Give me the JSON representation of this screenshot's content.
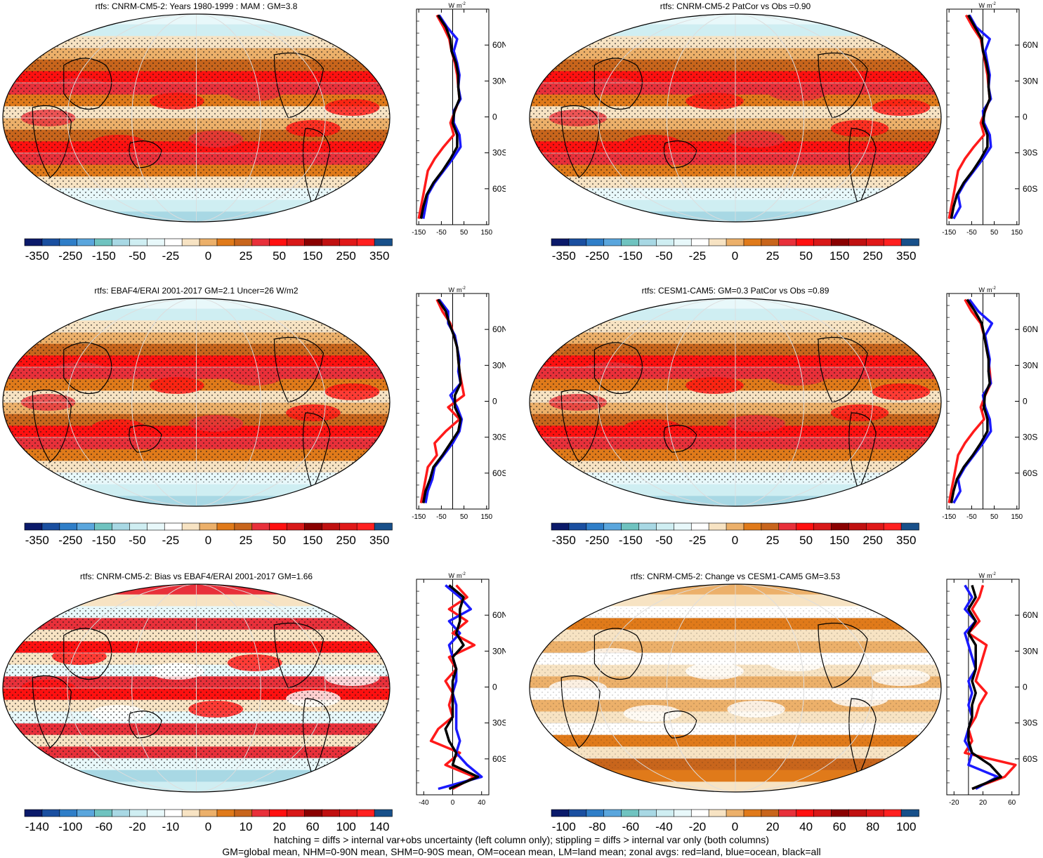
{
  "panels": [
    {
      "title": "rtfs: CNRM-CM5-2: Years 1980-1999 : MAM : GM=3.8",
      "scale": "A",
      "pattern": "tropics"
    },
    {
      "title": "rtfs: CNRM-CM5-2 PatCor vs Obs =0.90",
      "scale": "A",
      "pattern": "tropics"
    },
    {
      "title": "rtfs: EBAF4/ERAI 2001-2017 GM=2.1 Uncer=26 W/m2",
      "scale": "A",
      "pattern": "tropics"
    },
    {
      "title": "rtfs: CESM1-CAM5: GM=0.3 PatCor vs Obs =0.89",
      "scale": "A",
      "pattern": "tropics"
    },
    {
      "title": "rtfs: CNRM-CM5-2: Bias vs EBAF4/ERAI 2001-2017 GM=1.66",
      "scale": "B",
      "pattern": "bias"
    },
    {
      "title": "rtfs: CNRM-CM5-2: Change vs CESM1-CAM5 GM=3.53",
      "scale": "C",
      "pattern": "change"
    }
  ],
  "colorbars": {
    "A": [
      "-350",
      "-250",
      "-150",
      "-50",
      "-25",
      "0",
      "25",
      "50",
      "150",
      "250",
      "350"
    ],
    "B": [
      "-140",
      "-100",
      "-60",
      "-20",
      "-10",
      "0",
      "10",
      "20",
      "60",
      "100",
      "140"
    ],
    "C": [
      "-100",
      "-80",
      "-60",
      "-40",
      "-20",
      "0",
      "20",
      "40",
      "60",
      "80",
      "100"
    ]
  },
  "palette": [
    "#0b1a6a",
    "#1a4fa0",
    "#2f7ec8",
    "#5aa6dd",
    "#6fc3c0",
    "#a8d8e4",
    "#cfeef2",
    "#e8f8fa",
    "#ffffff",
    "#f7e3c3",
    "#ecb06a",
    "#e07a1a",
    "#c8651c",
    "#e8303a",
    "#ff1010",
    "#d81818",
    "#8a0000",
    "#c01010",
    "#e01818",
    "#ff2020",
    "#18508a"
  ],
  "zonal": {
    "unit_w": "W",
    "unit_m": "m",
    "unit_exp": "-2",
    "lat_labels": [
      "60N",
      "30N",
      "0",
      "30S",
      "60S"
    ],
    "lat_values": [
      60,
      30,
      0,
      -30,
      -60
    ],
    "xticks": [
      {
        "labels": [
          "-150",
          "-50",
          "50",
          "150"
        ],
        "values": [
          -150,
          -50,
          50,
          150
        ],
        "range": [
          -160,
          160
        ]
      },
      {
        "labels": [
          "-150",
          "-50",
          "50",
          "150"
        ],
        "values": [
          -150,
          -50,
          50,
          150
        ],
        "range": [
          -160,
          160
        ]
      },
      {
        "labels": [
          "-150",
          "-50",
          "50",
          "150"
        ],
        "values": [
          -150,
          -50,
          50,
          150
        ],
        "range": [
          -160,
          160
        ]
      },
      {
        "labels": [
          "-150",
          "-50",
          "50",
          "150"
        ],
        "values": [
          -150,
          -50,
          50,
          150
        ],
        "range": [
          -160,
          160
        ]
      },
      {
        "labels": [
          "-40",
          "0",
          "40"
        ],
        "values": [
          -40,
          0,
          40
        ],
        "range": [
          -50,
          50
        ]
      },
      {
        "labels": [
          "-20",
          "20",
          "60"
        ],
        "values": [
          -20,
          20,
          60
        ],
        "range": [
          -30,
          70
        ]
      }
    ]
  },
  "chart_data": [
    {
      "type": "line",
      "lat": [
        85,
        75,
        65,
        55,
        45,
        35,
        25,
        15,
        5,
        -5,
        -15,
        -25,
        -35,
        -45,
        -55,
        -65,
        -75,
        -85
      ],
      "series": [
        {
          "name": "land",
          "values": [
            -70,
            -40,
            -15,
            -5,
            10,
            20,
            25,
            30,
            10,
            -10,
            5,
            -40,
            -80,
            -110,
            -120,
            -130,
            -140,
            -150
          ]
        },
        {
          "name": "ocean",
          "values": [
            -60,
            -25,
            20,
            5,
            20,
            30,
            25,
            35,
            5,
            5,
            30,
            35,
            0,
            -40,
            -80,
            -110,
            -120,
            -130
          ]
        },
        {
          "name": "all",
          "values": [
            -65,
            -30,
            -10,
            -5,
            15,
            25,
            25,
            30,
            8,
            0,
            20,
            20,
            -10,
            -45,
            -85,
            -115,
            -130,
            -140
          ]
        }
      ]
    },
    {
      "type": "line",
      "lat": [
        85,
        75,
        65,
        55,
        45,
        35,
        25,
        15,
        5,
        -5,
        -15,
        -25,
        -35,
        -45,
        -55,
        -65,
        -75,
        -85
      ],
      "series": [
        {
          "name": "land",
          "values": [
            -75,
            -45,
            -10,
            0,
            10,
            20,
            25,
            30,
            10,
            -10,
            5,
            -40,
            -80,
            -110,
            -120,
            -130,
            -140,
            -150
          ]
        },
        {
          "name": "ocean",
          "values": [
            -60,
            -30,
            30,
            10,
            20,
            30,
            25,
            35,
            0,
            5,
            30,
            35,
            0,
            -40,
            -80,
            -110,
            -100,
            -130
          ]
        },
        {
          "name": "all",
          "values": [
            -65,
            -35,
            -5,
            0,
            15,
            25,
            25,
            30,
            8,
            0,
            20,
            20,
            -10,
            -45,
            -85,
            -115,
            -130,
            -140
          ]
        }
      ]
    },
    {
      "type": "line",
      "lat": [
        85,
        75,
        65,
        55,
        45,
        35,
        25,
        15,
        5,
        -5,
        -15,
        -25,
        -35,
        -45,
        -55,
        -65,
        -75,
        -85
      ],
      "series": [
        {
          "name": "land",
          "values": [
            -70,
            -45,
            -10,
            5,
            20,
            25,
            30,
            40,
            50,
            -20,
            30,
            -30,
            -80,
            -70,
            -110,
            -120,
            -130,
            -140
          ]
        },
        {
          "name": "ocean",
          "values": [
            -60,
            -20,
            -20,
            10,
            20,
            30,
            25,
            35,
            -10,
            20,
            40,
            30,
            0,
            -40,
            -80,
            -90,
            -110,
            -120
          ]
        },
        {
          "name": "all",
          "values": [
            -65,
            -30,
            -15,
            5,
            20,
            25,
            30,
            35,
            10,
            10,
            35,
            25,
            -10,
            -45,
            -85,
            -100,
            -120,
            -130
          ]
        }
      ]
    },
    {
      "type": "line",
      "lat": [
        85,
        75,
        65,
        55,
        45,
        35,
        25,
        15,
        5,
        -5,
        -15,
        -25,
        -35,
        -45,
        -55,
        -65,
        -75,
        -85
      ],
      "series": [
        {
          "name": "land",
          "values": [
            -80,
            -50,
            -10,
            5,
            15,
            25,
            30,
            35,
            10,
            -10,
            5,
            -40,
            -80,
            -110,
            -120,
            -130,
            -140,
            -150
          ]
        },
        {
          "name": "ocean",
          "values": [
            -60,
            -20,
            40,
            10,
            20,
            30,
            25,
            35,
            0,
            10,
            30,
            35,
            0,
            -40,
            -80,
            -110,
            -100,
            -130
          ]
        },
        {
          "name": "all",
          "values": [
            -70,
            -35,
            -5,
            5,
            15,
            25,
            25,
            30,
            8,
            5,
            20,
            20,
            -10,
            -45,
            -85,
            -115,
            -130,
            -140
          ]
        }
      ]
    },
    {
      "type": "line",
      "lat": [
        85,
        75,
        65,
        55,
        45,
        35,
        25,
        15,
        5,
        -5,
        -15,
        -25,
        -35,
        -45,
        -55,
        -65,
        -75,
        -85
      ],
      "series": [
        {
          "name": "land",
          "values": [
            5,
            20,
            -5,
            20,
            0,
            30,
            -5,
            5,
            -10,
            0,
            -5,
            0,
            -20,
            -30,
            10,
            -10,
            30,
            0
          ]
        },
        {
          "name": "ocean",
          "values": [
            -10,
            10,
            25,
            -5,
            10,
            -5,
            0,
            5,
            5,
            0,
            5,
            5,
            5,
            10,
            5,
            20,
            40,
            -20
          ]
        },
        {
          "name": "all",
          "values": [
            -5,
            15,
            10,
            10,
            5,
            15,
            0,
            5,
            0,
            0,
            0,
            0,
            -10,
            -5,
            5,
            0,
            35,
            -5
          ]
        }
      ]
    },
    {
      "type": "line",
      "lat": [
        85,
        75,
        65,
        55,
        45,
        35,
        25,
        15,
        5,
        -5,
        -15,
        -25,
        -35,
        -45,
        -55,
        -65,
        -75,
        -85
      ],
      "series": [
        {
          "name": "land",
          "values": [
            20,
            15,
            5,
            15,
            0,
            25,
            20,
            15,
            10,
            25,
            15,
            10,
            0,
            5,
            -5,
            65,
            50,
            5
          ]
        },
        {
          "name": "ocean",
          "values": [
            -5,
            5,
            -5,
            10,
            -5,
            0,
            5,
            10,
            0,
            5,
            0,
            5,
            0,
            -5,
            5,
            0,
            40,
            10
          ]
        },
        {
          "name": "all",
          "values": [
            5,
            10,
            0,
            10,
            0,
            10,
            10,
            10,
            5,
            10,
            5,
            5,
            0,
            0,
            5,
            30,
            45,
            5
          ]
        }
      ]
    }
  ],
  "footer": {
    "line1": "hatching = diffs > internal var+obs uncertainty (left column only); stippling = diffs > internal var only (both columns)",
    "line2": "GM=global mean, NHM=0-90N mean, SHM=0-90S mean, OM=ocean mean, LM=land mean; zonal avgs: red=land, blue=ocean, black=all"
  }
}
